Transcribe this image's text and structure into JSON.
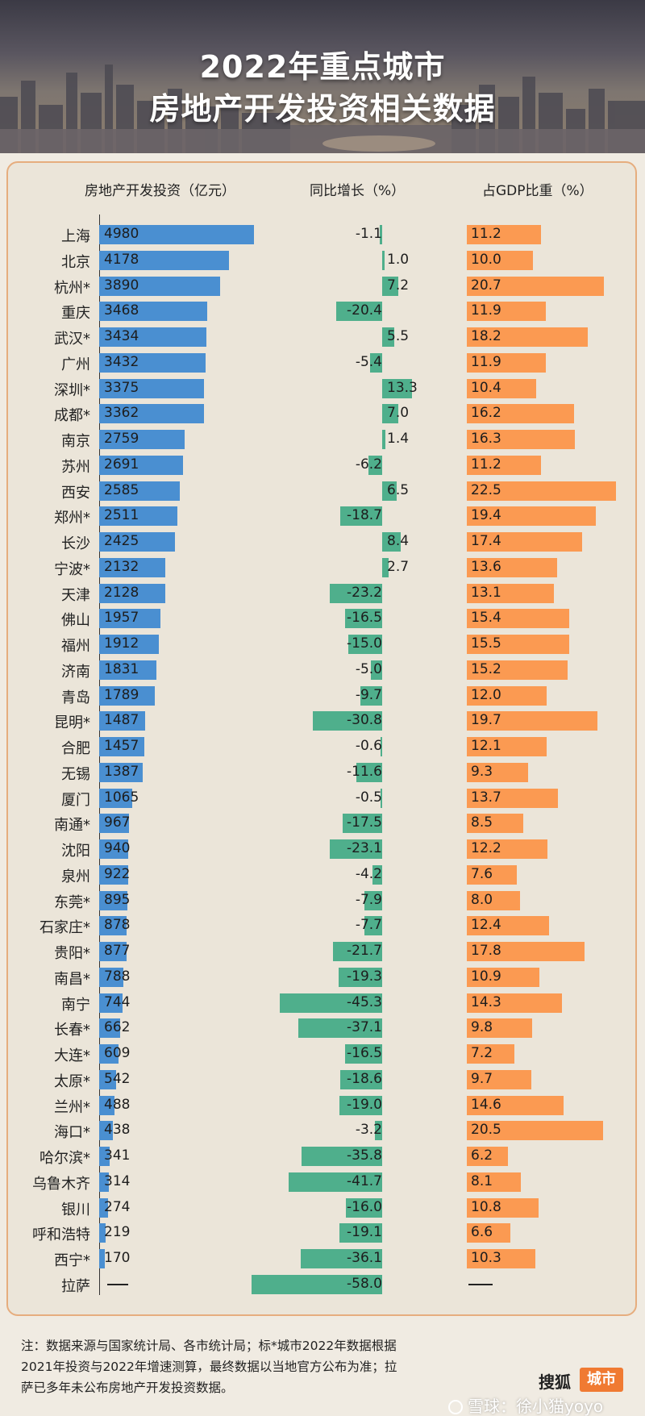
{
  "title": {
    "line1": "2022年重点城市",
    "line2": "房地产开发投资相关数据"
  },
  "colors": {
    "investment": "#4a8fd1",
    "growth": "#4faf8c",
    "gdp_share": "#fb9a52",
    "panel_border": "#e6ad7e",
    "logo_tag": "#f07a32"
  },
  "chart_data": {
    "type": "bar",
    "series": [
      {
        "name": "房地产开发投资（亿元）",
        "key": "investment"
      },
      {
        "name": "同比增长（%）",
        "key": "growth"
      },
      {
        "name": "占GDP比重（%）",
        "key": "gdp"
      }
    ],
    "missing_label": "——",
    "rows": [
      {
        "city": "上海",
        "investment": 4980,
        "growth": -1.1,
        "gdp": 11.2
      },
      {
        "city": "北京",
        "investment": 4178,
        "growth": 1.0,
        "gdp": 10.0
      },
      {
        "city": "杭州*",
        "investment": 3890,
        "growth": 7.2,
        "gdp": 20.7
      },
      {
        "city": "重庆",
        "investment": 3468,
        "growth": -20.4,
        "gdp": 11.9
      },
      {
        "city": "武汉*",
        "investment": 3434,
        "growth": 5.5,
        "gdp": 18.2
      },
      {
        "city": "广州",
        "investment": 3432,
        "growth": -5.4,
        "gdp": 11.9
      },
      {
        "city": "深圳*",
        "investment": 3375,
        "growth": 13.3,
        "gdp": 10.4
      },
      {
        "city": "成都*",
        "investment": 3362,
        "growth": 7.0,
        "gdp": 16.2
      },
      {
        "city": "南京",
        "investment": 2759,
        "growth": 1.4,
        "gdp": 16.3
      },
      {
        "city": "苏州",
        "investment": 2691,
        "growth": -6.2,
        "gdp": 11.2
      },
      {
        "city": "西安",
        "investment": 2585,
        "growth": 6.5,
        "gdp": 22.5
      },
      {
        "city": "郑州*",
        "investment": 2511,
        "growth": -18.7,
        "gdp": 19.4
      },
      {
        "city": "长沙",
        "investment": 2425,
        "growth": 8.4,
        "gdp": 17.4
      },
      {
        "city": "宁波*",
        "investment": 2132,
        "growth": 2.7,
        "gdp": 13.6
      },
      {
        "city": "天津",
        "investment": 2128,
        "growth": -23.2,
        "gdp": 13.1
      },
      {
        "city": "佛山",
        "investment": 1957,
        "growth": -16.5,
        "gdp": 15.4
      },
      {
        "city": "福州",
        "investment": 1912,
        "growth": -15.0,
        "gdp": 15.5
      },
      {
        "city": "济南",
        "investment": 1831,
        "growth": -5.0,
        "gdp": 15.2
      },
      {
        "city": "青岛",
        "investment": 1789,
        "growth": -9.7,
        "gdp": 12.0
      },
      {
        "city": "昆明*",
        "investment": 1487,
        "growth": -30.8,
        "gdp": 19.7
      },
      {
        "city": "合肥",
        "investment": 1457,
        "growth": -0.6,
        "gdp": 12.1
      },
      {
        "city": "无锡",
        "investment": 1387,
        "growth": -11.6,
        "gdp": 9.3
      },
      {
        "city": "厦门",
        "investment": 1065,
        "growth": -0.5,
        "gdp": 13.7
      },
      {
        "city": "南通*",
        "investment": 967,
        "growth": -17.5,
        "gdp": 8.5
      },
      {
        "city": "沈阳",
        "investment": 940,
        "growth": -23.1,
        "gdp": 12.2
      },
      {
        "city": "泉州",
        "investment": 922,
        "growth": -4.2,
        "gdp": 7.6
      },
      {
        "city": "东莞*",
        "investment": 895,
        "growth": -7.9,
        "gdp": 8.0
      },
      {
        "city": "石家庄*",
        "investment": 878,
        "growth": -7.7,
        "gdp": 12.4
      },
      {
        "city": "贵阳*",
        "investment": 877,
        "growth": -21.7,
        "gdp": 17.8
      },
      {
        "city": "南昌*",
        "investment": 788,
        "growth": -19.3,
        "gdp": 10.9
      },
      {
        "city": "南宁",
        "investment": 744,
        "growth": -45.3,
        "gdp": 14.3
      },
      {
        "city": "长春*",
        "investment": 662,
        "growth": -37.1,
        "gdp": 9.8
      },
      {
        "city": "大连*",
        "investment": 609,
        "growth": -16.5,
        "gdp": 7.2
      },
      {
        "city": "太原*",
        "investment": 542,
        "growth": -18.6,
        "gdp": 9.7
      },
      {
        "city": "兰州*",
        "investment": 488,
        "growth": -19.0,
        "gdp": 14.6
      },
      {
        "city": "海口*",
        "investment": 438,
        "growth": -3.2,
        "gdp": 20.5
      },
      {
        "city": "哈尔滨*",
        "investment": 341,
        "growth": -35.8,
        "gdp": 6.2
      },
      {
        "city": "乌鲁木齐",
        "investment": 314,
        "growth": -41.7,
        "gdp": 8.1
      },
      {
        "city": "银川",
        "investment": 274,
        "growth": -16.0,
        "gdp": 10.8
      },
      {
        "city": "呼和浩特",
        "investment": 219,
        "growth": -19.1,
        "gdp": 6.6
      },
      {
        "city": "西宁*",
        "investment": 170,
        "growth": -36.1,
        "gdp": 10.3
      },
      {
        "city": "拉萨",
        "investment": null,
        "growth": -58.0,
        "gdp": null
      }
    ]
  },
  "note": {
    "line1": "注：数据来源与国家统计局、各市统计局；标*城市2022年数据根据",
    "line2": "2021年投资与2022年增速测算，最终数据以当地官方公布为准；拉",
    "line3": "萨已多年未公布房地产开发投资数据。"
  },
  "logo": {
    "brand": "搜狐",
    "tag": "城市"
  },
  "watermark": "雪球：徐小猫yoyo"
}
